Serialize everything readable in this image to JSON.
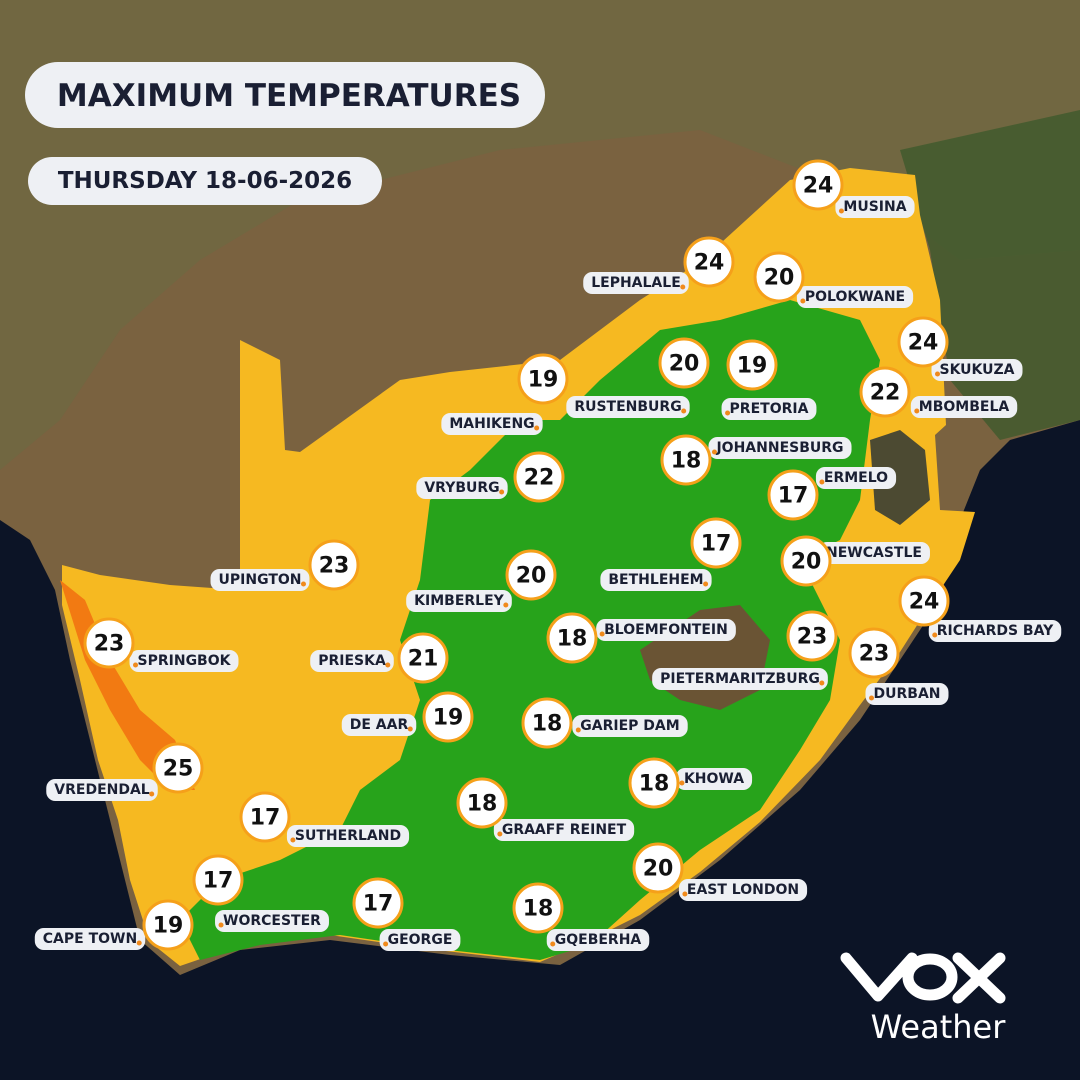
{
  "header": {
    "title": "MAXIMUM TEMPERATURES",
    "date": "THURSDAY 18-06-2026"
  },
  "cities": [
    {
      "name": "MUSINA",
      "temp": 24
    },
    {
      "name": "LEPHALALE",
      "temp": 24
    },
    {
      "name": "POLOKWANE",
      "temp": 20
    },
    {
      "name": "SKUKUZA",
      "temp": 24
    },
    {
      "name": "MBOMBELA",
      "temp": 22
    },
    {
      "name": "MAHIKENG",
      "temp": 19
    },
    {
      "name": "RUSTENBURG",
      "temp": 20
    },
    {
      "name": "PRETORIA",
      "temp": 19
    },
    {
      "name": "JOHANNESBURG",
      "temp": 18
    },
    {
      "name": "VRYBURG",
      "temp": 22
    },
    {
      "name": "ERMELO",
      "temp": 17
    },
    {
      "name": "UPINGTON",
      "temp": 23
    },
    {
      "name": "KIMBERLEY",
      "temp": 20
    },
    {
      "name": "BETHLEHEM",
      "temp": 17
    },
    {
      "name": "NEWCASTLE",
      "temp": 20
    },
    {
      "name": "SPRINGBOK",
      "temp": 23
    },
    {
      "name": "PRIESKA",
      "temp": 21
    },
    {
      "name": "BLOEMFONTEIN",
      "temp": 18
    },
    {
      "name": "RICHARDS BAY",
      "temp": 24
    },
    {
      "name": "PIETERMARITZBURG",
      "temp": 23
    },
    {
      "name": "DURBAN",
      "temp": 23
    },
    {
      "name": "DE AAR",
      "temp": 19
    },
    {
      "name": "GARIEP DAM",
      "temp": 18
    },
    {
      "name": "VREDENDAL",
      "temp": 25
    },
    {
      "name": "KHOWA",
      "temp": 18
    },
    {
      "name": "SUTHERLAND",
      "temp": 17
    },
    {
      "name": "GRAAFF REINET",
      "temp": 18
    },
    {
      "name": "EAST LONDON",
      "temp": 20
    },
    {
      "name": "WORCESTER",
      "temp": 17
    },
    {
      "name": "GEORGE",
      "temp": 17
    },
    {
      "name": "CAPE TOWN",
      "temp": 19
    },
    {
      "name": "GQEBERHA",
      "temp": 18
    }
  ],
  "logo": {
    "text": "Weather"
  }
}
